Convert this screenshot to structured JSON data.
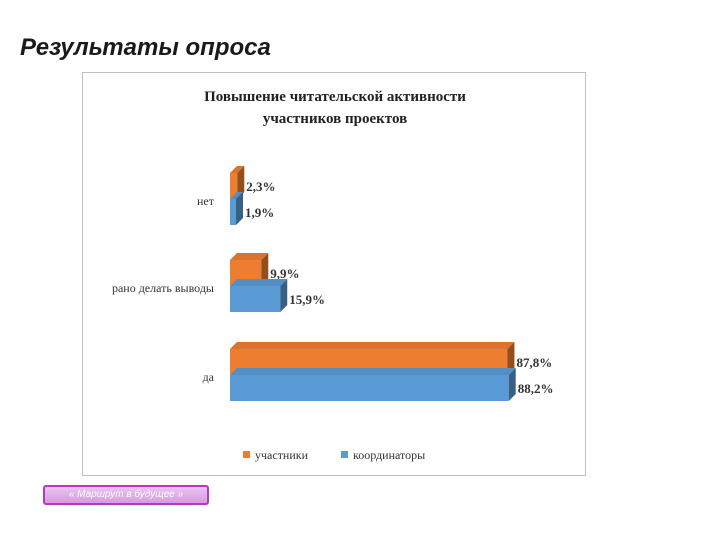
{
  "slide": {
    "title": "Результаты опроса"
  },
  "footer": {
    "label": "« Маршрут в будущее »"
  },
  "colors": {
    "series_participants": "#ed7d31",
    "series_coordinators": "#5b9bd5"
  },
  "chart_data": {
    "type": "bar",
    "orientation": "horizontal",
    "style": "3d",
    "title": "Повышение читательской активности участников проектов",
    "categories": [
      "нет",
      "рано делать выводы",
      "да"
    ],
    "series": [
      {
        "name": "участники",
        "values": [
          2.3,
          9.9,
          87.8
        ],
        "labels": [
          "2,3%",
          "9,9%",
          "87,8%"
        ]
      },
      {
        "name": "координаторы",
        "values": [
          1.9,
          15.9,
          88.2
        ],
        "labels": [
          "1,9%",
          "15,9%",
          "88,2%"
        ]
      }
    ],
    "xlim": [
      0,
      100
    ],
    "grid": false,
    "legend_position": "bottom"
  }
}
